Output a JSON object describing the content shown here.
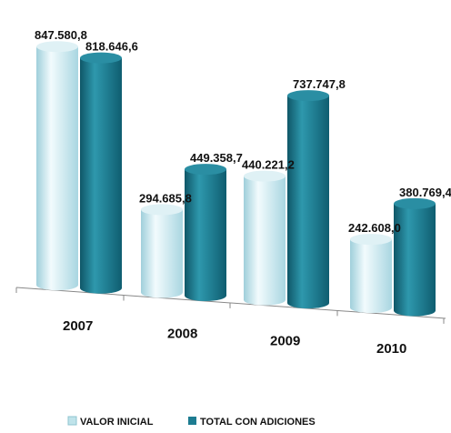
{
  "chart_data": {
    "type": "bar",
    "categories": [
      "2007",
      "2008",
      "2009",
      "2010"
    ],
    "series": [
      {
        "name": "VALOR INICIAL",
        "values": [
          847580.8,
          294685.8,
          440221.2,
          242608.0
        ],
        "labels": [
          "847.580,8",
          "294.685,8",
          "440.221,2",
          "242.608,0"
        ],
        "color": "#bfe3ea"
      },
      {
        "name": "TOTAL CON ADICIONES",
        "values": [
          818646.6,
          449358.7,
          737747.8,
          380769.4
        ],
        "labels": [
          "818.646,6",
          "449.358,7",
          "737.747,8",
          "380.769,4"
        ],
        "color": "#1d7c91"
      }
    ],
    "legend_position": "bottom",
    "grid": false
  }
}
